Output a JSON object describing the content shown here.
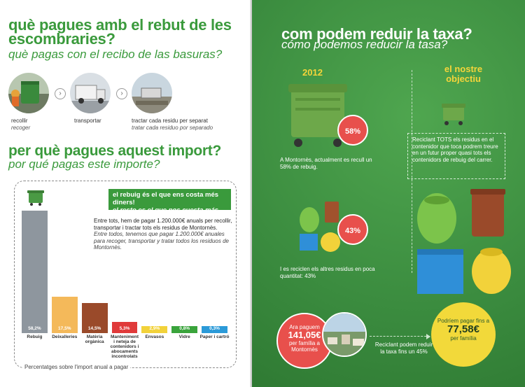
{
  "left": {
    "title": "què pagues amb el rebut de les escombraries?",
    "title_es": "què pagas con el recibo de las basuras?",
    "steps": [
      {
        "label": "recollir",
        "label_es": "recoger"
      },
      {
        "label": "transportar",
        "label_es": ""
      },
      {
        "label": "tractar cada residu per separat",
        "label_es": "tratar cada residuo por separado"
      }
    ],
    "section_title": "per què pagues aquest import?",
    "section_title_es": "por qué pagas este importe?",
    "banner_line1": "el rebuig és el que ens costa més diners!",
    "banner_line2": "el resto es el que nos cuesta más dinero!",
    "cost_text": "Entre tots, hem de pagar 1.200.000€ anuals per recollir, transportar i tractar tots els residus de Montornès.",
    "cost_text_es": "Entre todos, tenemos que pagar 1.200.000€ anuales para recoger, transportar y tratar todos los residuos de Montornès.",
    "chart_caption": "Percentatges sobre l'import anual a pagar"
  },
  "chart_data": {
    "type": "bar",
    "categories": [
      "Rebuig",
      "Deixalleries",
      "Matèria orgànica",
      "Manteniment i neteja de contenidors i abocaments incontrolats",
      "Envasos",
      "Vidre",
      "Paper i cartró"
    ],
    "values": [
      58.2,
      17.5,
      14.5,
      5.3,
      2.9,
      0.8,
      0.3
    ],
    "value_labels": [
      "58,2%",
      "17,5%",
      "14,5%",
      "5,3%",
      "2,9%",
      "0,8%",
      "0,3%"
    ],
    "colors": [
      "#8e969e",
      "#f4b95a",
      "#9a4a2a",
      "#e03a3a",
      "#f2d23a",
      "#3aa43c",
      "#2b9ad8"
    ],
    "title": "",
    "xlabel": "",
    "ylabel": "",
    "ylim": [
      0,
      60
    ]
  },
  "right": {
    "title": "com podem reduir la taxa?",
    "title_es": "cómo podemos reducir la tasa?",
    "year_label": "2012",
    "objective_label": "el nostre objectiu",
    "pct_rebuig": "58%",
    "rebuig_text": "A Montornès, actualment es recull un 58% de rebuig.",
    "pct_recycle": "43%",
    "recycle_text": "I es reciclen els altres residus en poca quantitat: 43%",
    "objective_text": "Reciclant TOTS els residus en el contenidor que toca podrem treure en un futur proper quasi tots els contenidors de rebuig del carrer.",
    "pay_now_pre": "Ara paguem",
    "pay_now_value": "141,05€",
    "pay_now_post": "per família a Montornès",
    "mid_text": "Reciclant podem reduir la taxa fins un 45%",
    "pay_future_pre": "Podríem pagar fins a",
    "pay_future_value": "77,58€",
    "pay_future_post": "per família"
  }
}
